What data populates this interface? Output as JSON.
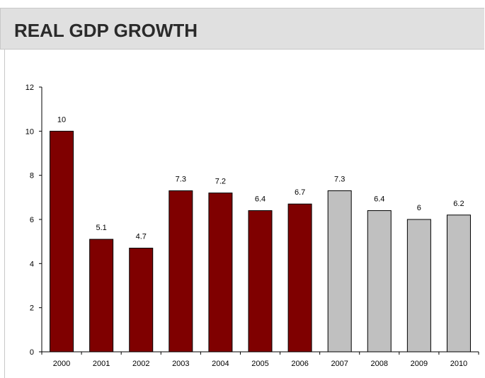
{
  "header": {
    "title": "REAL GDP GROWTH"
  },
  "chart_data": {
    "type": "bar",
    "title": "",
    "xlabel": "",
    "ylabel": "",
    "categories": [
      "2000",
      "2001",
      "2002",
      "2003",
      "2004",
      "2005",
      "2006",
      "2007",
      "2008",
      "2009",
      "2010"
    ],
    "values": [
      10,
      5.1,
      4.7,
      7.3,
      7.2,
      6.4,
      6.7,
      7.3,
      6.4,
      6,
      6.2
    ],
    "value_labels": [
      "10",
      "5.1",
      "4.7",
      "7.3",
      "7.2",
      "6.4",
      "6.7",
      "7.3",
      "6.4",
      "6",
      "6.2"
    ],
    "ylim": [
      0,
      12
    ],
    "yticks": [
      0,
      2,
      4,
      6,
      8,
      10,
      12
    ],
    "ytick_labels": [
      "0",
      "2",
      "4",
      "6",
      "8",
      "10",
      "12"
    ],
    "grid": false,
    "legend": "none",
    "colors": {
      "actual": "#7f0000",
      "projected": "#c0c0c0",
      "bar_border": "#000000",
      "axis": "#000000"
    },
    "bar_groups": [
      "actual",
      "actual",
      "actual",
      "actual",
      "actual",
      "actual",
      "actual",
      "projected",
      "projected",
      "projected",
      "projected"
    ]
  }
}
